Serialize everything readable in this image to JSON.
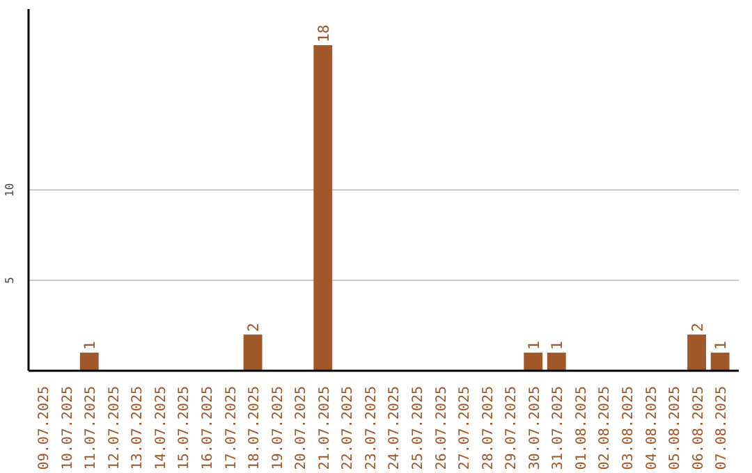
{
  "chart_data": {
    "type": "bar",
    "categories": [
      "09.07.2025",
      "10.07.2025",
      "11.07.2025",
      "12.07.2025",
      "13.07.2025",
      "14.07.2025",
      "15.07.2025",
      "16.07.2025",
      "17.07.2025",
      "18.07.2025",
      "19.07.2025",
      "20.07.2025",
      "21.07.2025",
      "22.07.2025",
      "23.07.2025",
      "24.07.2025",
      "25.07.2025",
      "26.07.2025",
      "27.07.2025",
      "28.07.2025",
      "29.07.2025",
      "30.07.2025",
      "31.07.2025",
      "01.08.2025",
      "02.08.2025",
      "03.08.2025",
      "04.08.2025",
      "05.08.2025",
      "06.08.2025",
      "07.08.2025"
    ],
    "values": [
      0,
      0,
      1,
      0,
      0,
      0,
      0,
      0,
      0,
      2,
      0,
      0,
      18,
      0,
      0,
      0,
      0,
      0,
      0,
      0,
      0,
      1,
      1,
      0,
      0,
      0,
      0,
      0,
      2,
      1
    ],
    "value_labels": [
      null,
      null,
      "1",
      null,
      null,
      null,
      null,
      null,
      null,
      "2",
      null,
      null,
      "18",
      null,
      null,
      null,
      null,
      null,
      null,
      null,
      null,
      "1",
      "1",
      null,
      null,
      null,
      null,
      null,
      "2",
      "1"
    ],
    "color": "#a0572a",
    "ylim": [
      0,
      20
    ],
    "yticks": [
      5,
      10
    ],
    "grid": "y"
  }
}
